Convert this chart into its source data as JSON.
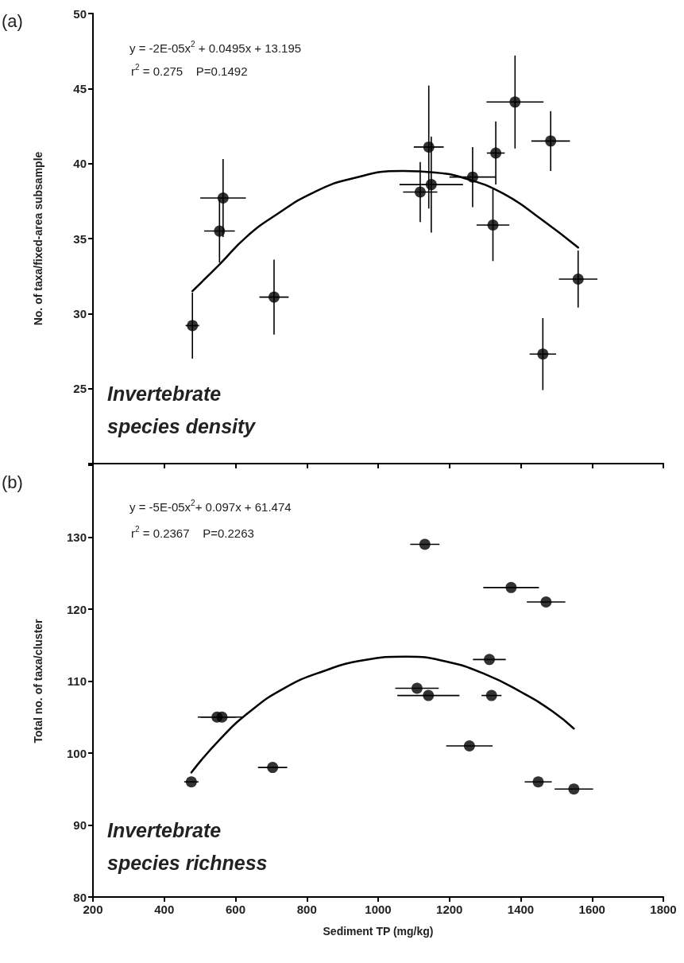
{
  "chart_data": [
    {
      "type": "scatter",
      "ylabel": "No. of taxa/fixed-area subsample",
      "xlim": [
        200,
        1800
      ],
      "xticks": [
        200,
        400,
        600,
        800,
        1000,
        1200,
        1400,
        1600,
        1800
      ],
      "ylim": [
        20,
        50
      ],
      "yticks": [
        {
          "value": 20,
          "label": null
        },
        25,
        30,
        35,
        40,
        45,
        50
      ],
      "tick_labels": "y",
      "grid": false,
      "annotations": [
        "(a)",
        "y = -2E-05x$^{2}$ + 0.0495x + 13.195",
        "r$^{2}$ = 0.275    P=0.1492",
        "Invertebrate species density"
      ],
      "series": [
        {
          "color": "#000000",
          "marker": "circle",
          "x": [
            479,
            555,
            565,
            708,
            1118,
            1142,
            1149,
            1265,
            1322,
            1330,
            1384,
            1484,
            1462,
            1561
          ],
          "values": [
            29.2,
            35.5,
            37.7,
            31.1,
            38.1,
            41.1,
            38.6,
            39.1,
            35.9,
            40.7,
            44.1,
            41.5,
            27.3,
            32.3
          ],
          "errors": [
            2.2,
            2.1,
            2.6,
            2.5,
            2.0,
            4.1,
            3.2,
            2.0,
            2.4,
            2.1,
            3.1,
            2.0,
            2.4,
            1.9
          ],
          "xerrors": [
            19,
            43,
            64,
            41,
            48,
            42,
            89,
            65,
            46,
            25,
            80,
            54,
            37,
            54
          ]
        },
        {
          "type": "line",
          "color": "#000000",
          "marker": "none",
          "line_style": "solid",
          "x": [
            479,
            556,
            630,
            715,
            821,
            927,
            1065,
            1160,
            1245,
            1351,
            1457,
            1561
          ],
          "values": [
            31.5,
            33.3,
            35.1,
            36.6,
            38.1,
            39.0,
            39.5,
            39.4,
            39.0,
            38.0,
            36.3,
            34.4
          ]
        }
      ]
    },
    {
      "type": "scatter",
      "xlabel": "Sediment TP (mg/kg)",
      "ylabel": "Total no. of taxa/cluster",
      "xlim": [
        200,
        1800
      ],
      "xticks": [
        200,
        400,
        600,
        800,
        1000,
        1200,
        1400,
        1600,
        1800
      ],
      "ylim": [
        80,
        140
      ],
      "yticks": [
        80,
        90,
        100,
        110,
        120,
        130,
        {
          "value": 140,
          "label": null
        }
      ],
      "grid": false,
      "annotations": [
        "(b)",
        "y = -5E-05x$^{2}$+ 0.097x + 61.474",
        "r$^{2}$ = 0.2367    P=0.2263",
        "Invertebrate species richness"
      ],
      "series": [
        {
          "color": "#000000",
          "marker": "circle",
          "x": [
            476,
            548,
            562,
            704,
            1131,
            1109,
            1141,
            1256,
            1312,
            1318,
            1373,
            1471,
            1449,
            1549
          ],
          "values": [
            96,
            105,
            105,
            98,
            129,
            109,
            108,
            101,
            113,
            108,
            123,
            121,
            96,
            95
          ],
          "xerrors": [
            20,
            54,
            60,
            41,
            41,
            61,
            87,
            65,
            46,
            28,
            78,
            54,
            38,
            54
          ]
        },
        {
          "type": "line",
          "color": "#000000",
          "marker": "none",
          "line_style": "solid",
          "x": [
            476,
            556,
            641,
            736,
            842,
            959,
            1081,
            1192,
            1298,
            1404,
            1489,
            1549
          ],
          "values": [
            97.3,
            101.9,
            105.8,
            109.0,
            111.3,
            112.9,
            113.4,
            112.7,
            111.0,
            108.4,
            105.8,
            103.4
          ]
        }
      ]
    }
  ]
}
